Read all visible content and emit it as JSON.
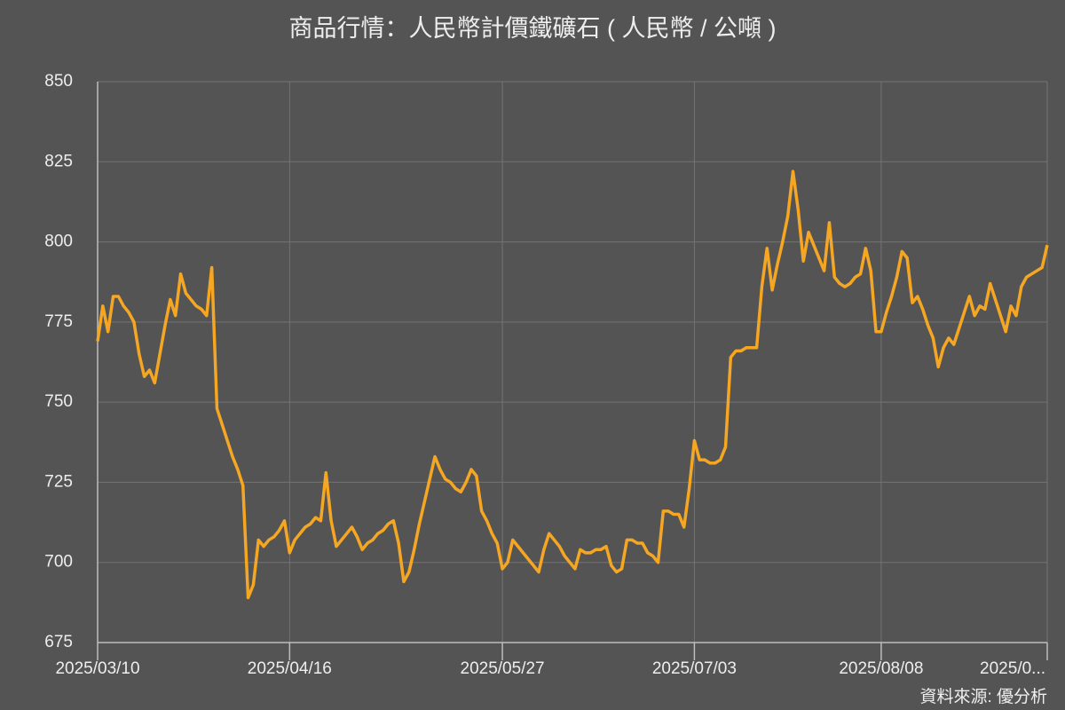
{
  "chart_data": {
    "type": "line",
    "title": "商品行情：人民幣計價鐵礦石 ( 人民幣 / 公噸 )",
    "source": "資料來源: 優分析",
    "categories": [
      "2025/03/10",
      null,
      null,
      null,
      null,
      null,
      null,
      null,
      null,
      null,
      null,
      null,
      null,
      null,
      null,
      null,
      null,
      null,
      null,
      null,
      null,
      null,
      null,
      null,
      null,
      null,
      null,
      null,
      null,
      null,
      null,
      null,
      null,
      null,
      null,
      null,
      null,
      "2025/04/16",
      null,
      null,
      null,
      null,
      null,
      null,
      null,
      null,
      null,
      null,
      null,
      null,
      null,
      null,
      null,
      null,
      null,
      null,
      null,
      null,
      null,
      null,
      null,
      null,
      null,
      null,
      null,
      null,
      null,
      null,
      null,
      null,
      null,
      null,
      null,
      null,
      null,
      null,
      null,
      null,
      "2025/05/27",
      null,
      null,
      null,
      null,
      null,
      null,
      null,
      null,
      null,
      null,
      null,
      null,
      null,
      null,
      null,
      null,
      null,
      null,
      null,
      null,
      null,
      null,
      null,
      null,
      null,
      null,
      null,
      null,
      null,
      null,
      null,
      null,
      null,
      null,
      null,
      null,
      "2025/07/03",
      null,
      null,
      null,
      null,
      null,
      null,
      null,
      null,
      null,
      null,
      null,
      null,
      null,
      null,
      null,
      null,
      null,
      null,
      null,
      null,
      null,
      null,
      null,
      null,
      null,
      null,
      null,
      null,
      null,
      null,
      null,
      null,
      null,
      null,
      null,
      "2025/08/08",
      null,
      null,
      null,
      null,
      null,
      null,
      null,
      null,
      null,
      null,
      null,
      null,
      null,
      null,
      null,
      null,
      null,
      null,
      null,
      null,
      null,
      null,
      null,
      null,
      null,
      null,
      null,
      null,
      null,
      null,
      null,
      "2025/0..."
    ],
    "series": [
      {
        "name": "鐵礦石",
        "color": "#f5a623",
        "values": [
          769,
          780,
          772,
          783,
          783,
          780,
          778,
          775,
          765,
          758,
          760,
          756,
          765,
          774,
          782,
          777,
          790,
          784,
          782,
          780,
          779,
          777,
          792,
          748,
          743,
          738,
          733,
          729,
          724,
          689,
          693,
          707,
          705,
          707,
          708,
          710,
          713,
          703,
          707,
          709,
          711,
          712,
          714,
          713,
          728,
          713,
          705,
          707,
          709,
          711,
          708,
          704,
          706,
          707,
          709,
          710,
          712,
          713,
          706,
          694,
          697,
          704,
          712,
          719,
          726,
          733,
          729,
          726,
          725,
          723,
          722,
          725,
          729,
          727,
          716,
          713,
          709,
          706,
          698,
          700,
          707,
          705,
          703,
          701,
          699,
          697,
          704,
          709,
          707,
          705,
          702,
          700,
          698,
          704,
          703,
          703,
          704,
          704,
          705,
          699,
          697,
          698,
          707,
          707,
          706,
          706,
          703,
          702,
          700,
          716,
          716,
          715,
          715,
          711,
          723,
          738,
          732,
          732,
          731,
          731,
          732,
          736,
          764,
          766,
          766,
          767,
          767,
          767,
          786,
          798,
          785,
          793,
          800,
          808,
          822,
          810,
          794,
          803,
          799,
          795,
          791,
          806,
          789,
          787,
          786,
          787,
          789,
          790,
          798,
          791,
          772,
          772,
          778,
          783,
          789,
          797,
          795,
          781,
          783,
          779,
          774,
          770,
          761,
          767,
          770,
          768,
          773,
          778,
          783,
          777,
          780,
          779,
          787,
          782,
          777,
          772,
          780,
          777,
          786,
          789,
          790,
          791,
          792,
          799
        ]
      }
    ],
    "ylim": [
      675,
      850
    ],
    "yticks": [
      675,
      700,
      725,
      750,
      775,
      800,
      825,
      850
    ],
    "grid": true
  }
}
